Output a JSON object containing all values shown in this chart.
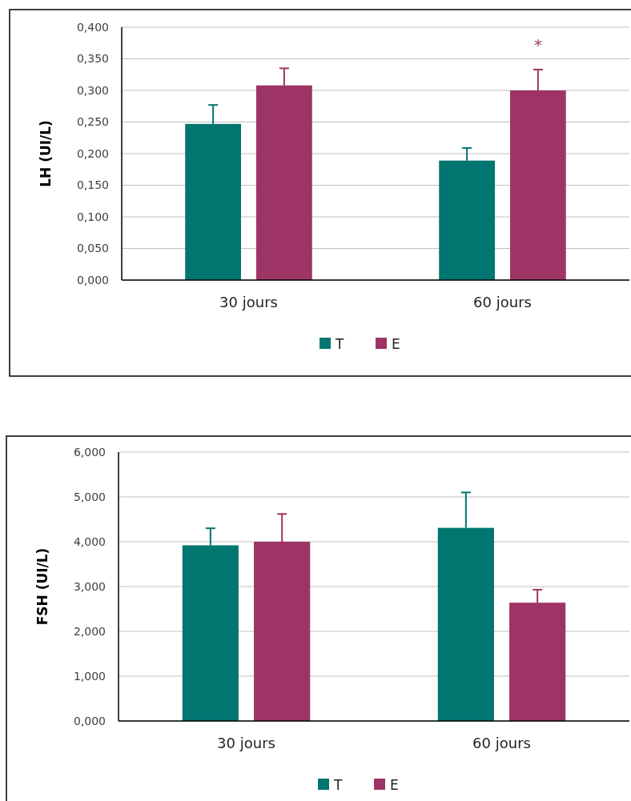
{
  "chart_data": [
    {
      "type": "bar",
      "ylabel": "LH (UI/L)",
      "categories": [
        "30 jours",
        "60 jours"
      ],
      "series": [
        {
          "name": "T",
          "color": "#017570",
          "values": [
            0.247,
            0.189
          ],
          "errors": [
            [
              0.247,
              0.277
            ],
            [
              0.189,
              0.209
            ]
          ]
        },
        {
          "name": "E",
          "color": "#9e3465",
          "values": [
            0.308,
            0.3
          ],
          "errors": [
            [
              0.308,
              0.335
            ],
            [
              0.3,
              0.333
            ]
          ]
        }
      ],
      "ylim": [
        0,
        0.4
      ],
      "yticks": [
        {
          "value": 0,
          "label": "0,000"
        },
        {
          "value": 0.05,
          "label": "0,050"
        },
        {
          "value": 0.1,
          "label": "0,100"
        },
        {
          "value": 0.15,
          "label": "0,150"
        },
        {
          "value": 0.2,
          "label": "0,200"
        },
        {
          "value": 0.25,
          "label": "0,250"
        },
        {
          "value": 0.3,
          "label": "0,300"
        },
        {
          "value": 0.35,
          "label": "0,350"
        },
        {
          "value": 0.4,
          "label": "0,400"
        }
      ],
      "grid": "y",
      "legend": "bottom",
      "annotations": [
        "*"
      ]
    },
    {
      "type": "bar",
      "ylabel": "FSH (UI/L)",
      "categories": [
        "30 jours",
        "60 jours"
      ],
      "series": [
        {
          "name": "T",
          "color": "#017570",
          "values": [
            3.92,
            4.31
          ],
          "errors": [
            [
              3.92,
              4.3
            ],
            [
              4.31,
              5.1
            ]
          ]
        },
        {
          "name": "E",
          "color": "#9e3465",
          "values": [
            4.0,
            2.64
          ],
          "errors": [
            [
              4.0,
              4.62
            ],
            [
              2.64,
              2.93
            ]
          ]
        }
      ],
      "ylim": [
        0,
        6
      ],
      "yticks": [
        {
          "value": 0,
          "label": "0,000"
        },
        {
          "value": 1,
          "label": "1,000"
        },
        {
          "value": 2,
          "label": "2,000"
        },
        {
          "value": 3,
          "label": "3,000"
        },
        {
          "value": 4,
          "label": "4,000"
        },
        {
          "value": 5,
          "label": "5,000"
        },
        {
          "value": 6,
          "label": "6,000"
        }
      ],
      "grid": "y",
      "legend": "bottom"
    }
  ]
}
